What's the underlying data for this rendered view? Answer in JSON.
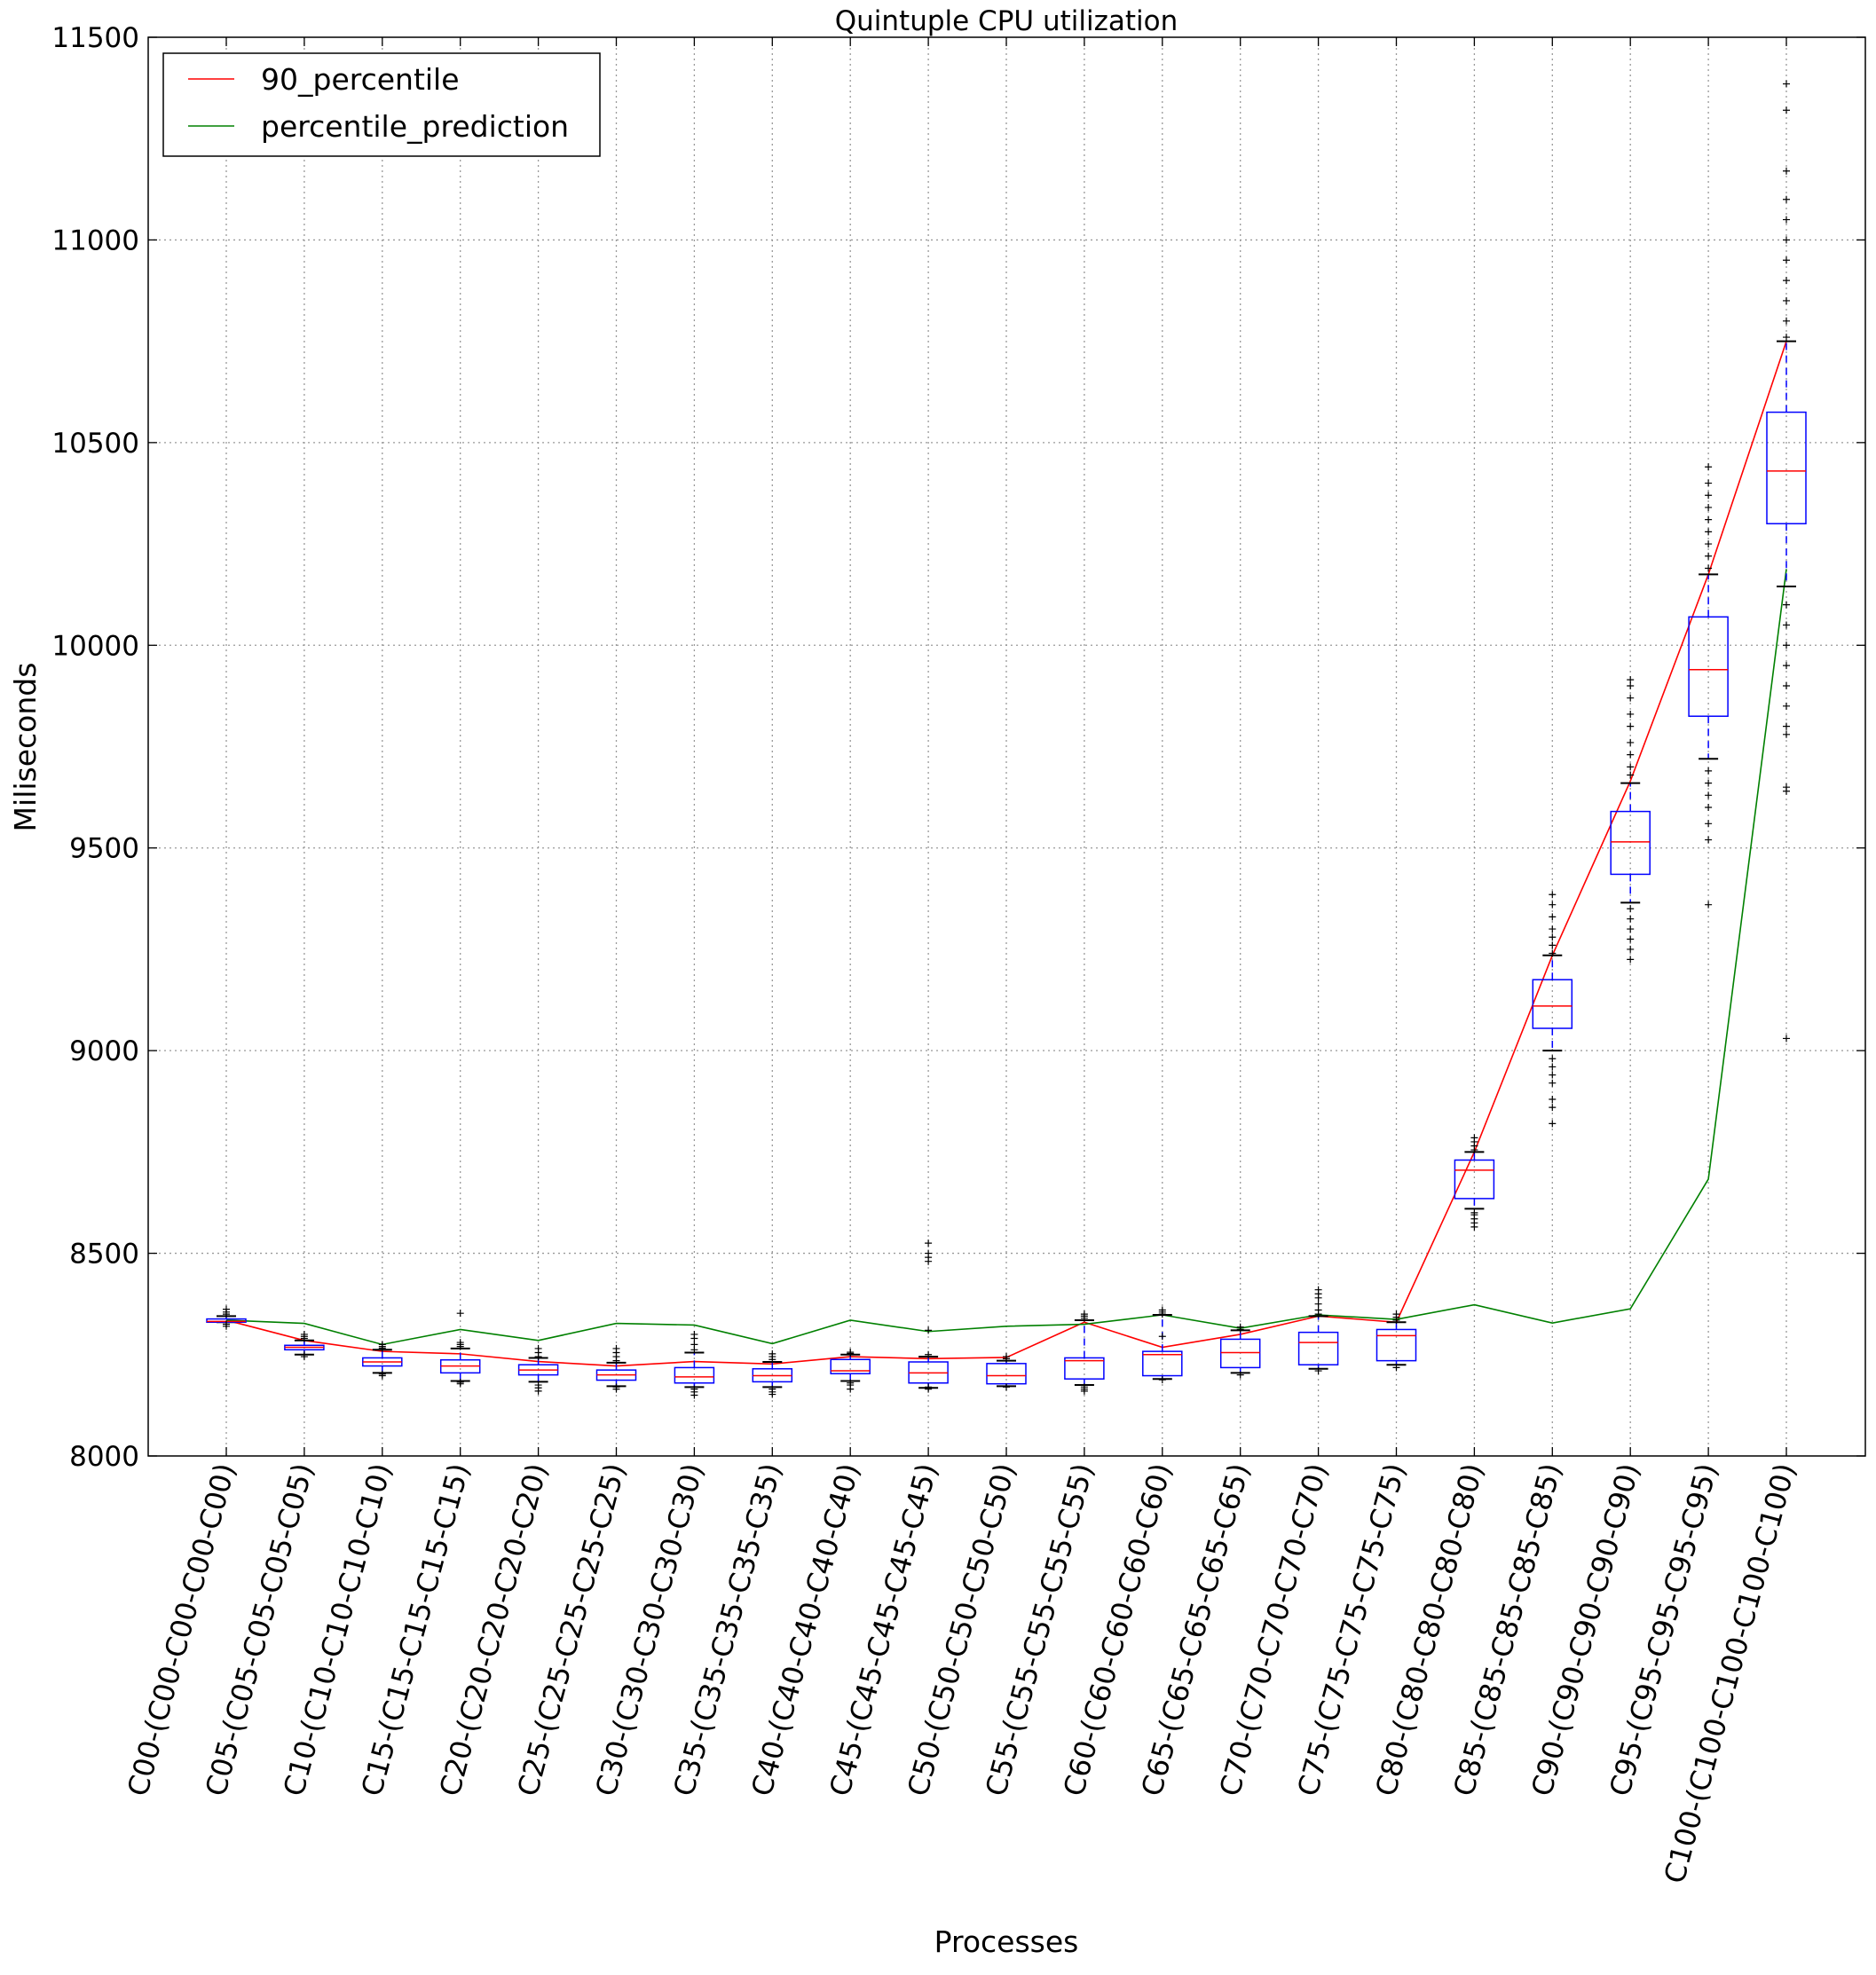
{
  "chart_data": {
    "type": "box",
    "title": "Quintuple CPU utilization",
    "xlabel": "Processes",
    "ylabel": "Miliseconds",
    "ylim": [
      8000,
      11500
    ],
    "yticks": [
      8000,
      8500,
      9000,
      9500,
      10000,
      10500,
      11000,
      11500
    ],
    "grid": true,
    "legend_position": "top-left",
    "categories": [
      "C00-(C00-C00-C00-C00)",
      "C05-(C05-C05-C05-C05)",
      "C10-(C10-C10-C10-C10)",
      "C15-(C15-C15-C15-C15)",
      "C20-(C20-C20-C20-C20)",
      "C25-(C25-C25-C25-C25)",
      "C30-(C30-C30-C30-C30)",
      "C35-(C35-C35-C35-C35)",
      "C40-(C40-C40-C40-C40)",
      "C45-(C45-C45-C45-C45)",
      "C50-(C50-C50-C50-C50)",
      "C55-(C55-C55-C55-C55)",
      "C60-(C60-C60-C60-C60)",
      "C65-(C65-C65-C65-C65)",
      "C70-(C70-C70-C70-C70)",
      "C75-(C75-C75-C75-C75)",
      "C80-(C80-C80-C80-C80)",
      "C85-(C85-C85-C85-C85)",
      "C90-(C90-C90-C90-C90)",
      "C95-(C95-C95-C95-C95)",
      "C100-(C100-C100-C100-C100)"
    ],
    "boxes": [
      {
        "whislo": 8330,
        "q1": 8330,
        "med": 8332,
        "q3": 8338,
        "whishi": 8345,
        "outliers": [
          8320,
          8325,
          8350,
          8355,
          8362
        ]
      },
      {
        "whislo": 8250,
        "q1": 8262,
        "med": 8268,
        "q3": 8273,
        "whishi": 8285,
        "outliers": [
          8245,
          8250,
          8290,
          8295,
          8300
        ]
      },
      {
        "whislo": 8205,
        "q1": 8222,
        "med": 8232,
        "q3": 8242,
        "whishi": 8262,
        "outliers": [
          8198,
          8202,
          8266,
          8270,
          8275
        ]
      },
      {
        "whislo": 8185,
        "q1": 8205,
        "med": 8222,
        "q3": 8237,
        "whishi": 8265,
        "outliers": [
          8178,
          8182,
          8270,
          8275,
          8280,
          8352
        ]
      },
      {
        "whislo": 8183,
        "q1": 8200,
        "med": 8212,
        "q3": 8225,
        "whishi": 8242,
        "outliers": [
          8160,
          8168,
          8175,
          8245,
          8255,
          8265
        ]
      },
      {
        "whislo": 8172,
        "q1": 8187,
        "med": 8200,
        "q3": 8212,
        "whishi": 8230,
        "outliers": [
          8165,
          8170,
          8235,
          8245,
          8255,
          8265
        ]
      },
      {
        "whislo": 8170,
        "q1": 8180,
        "med": 8195,
        "q3": 8218,
        "whishi": 8255,
        "outliers": [
          8150,
          8158,
          8165,
          8262,
          8275,
          8290,
          8300
        ]
      },
      {
        "whislo": 8170,
        "q1": 8183,
        "med": 8198,
        "q3": 8215,
        "whishi": 8232,
        "outliers": [
          8152,
          8158,
          8165,
          8238,
          8245,
          8252
        ]
      },
      {
        "whislo": 8185,
        "q1": 8203,
        "med": 8210,
        "q3": 8238,
        "whishi": 8250,
        "outliers": [
          8165,
          8175,
          8180,
          8253,
          8256
        ]
      },
      {
        "whislo": 8168,
        "q1": 8180,
        "med": 8205,
        "q3": 8232,
        "whishi": 8245,
        "outliers": [
          8165,
          8170,
          8250,
          8310,
          8480,
          8490,
          8500,
          8525
        ]
      },
      {
        "whislo": 8172,
        "q1": 8178,
        "med": 8198,
        "q3": 8228,
        "whishi": 8235,
        "outliers": [
          8170,
          8240,
          8245
        ]
      },
      {
        "whislo": 8175,
        "q1": 8190,
        "med": 8235,
        "q3": 8242,
        "whishi": 8335,
        "outliers": [
          8160,
          8165,
          8170,
          8340,
          8345,
          8350
        ]
      },
      {
        "whislo": 8190,
        "q1": 8198,
        "med": 8250,
        "q3": 8258,
        "whishi": 8348,
        "outliers": [
          8188,
          8295,
          8350,
          8355,
          8360
        ]
      },
      {
        "whislo": 8205,
        "q1": 8218,
        "med": 8255,
        "q3": 8288,
        "whishi": 8310,
        "outliers": [
          8200,
          8312,
          8318
        ]
      },
      {
        "whislo": 8215,
        "q1": 8225,
        "med": 8280,
        "q3": 8305,
        "whishi": 8345,
        "outliers": [
          8210,
          8350,
          8360,
          8375,
          8390,
          8400,
          8410
        ]
      },
      {
        "whislo": 8225,
        "q1": 8235,
        "med": 8297,
        "q3": 8312,
        "whishi": 8330,
        "outliers": [
          8218,
          8335,
          8342,
          8350
        ]
      },
      {
        "whislo": 8610,
        "q1": 8635,
        "med": 8705,
        "q3": 8730,
        "whishi": 8750,
        "outliers": [
          8565,
          8575,
          8585,
          8595,
          8600,
          8755,
          8765,
          8775,
          8785
        ]
      },
      {
        "whislo": 9000,
        "q1": 9055,
        "med": 9110,
        "q3": 9175,
        "whishi": 9235,
        "outliers": [
          8820,
          8860,
          8880,
          8920,
          8940,
          8960,
          8980,
          9240,
          9260,
          9280,
          9300,
          9330,
          9360,
          9385
        ]
      },
      {
        "whislo": 9365,
        "q1": 9435,
        "med": 9515,
        "q3": 9590,
        "whishi": 9660,
        "outliers": [
          9225,
          9250,
          9275,
          9300,
          9325,
          9350,
          9680,
          9700,
          9730,
          9760,
          9800,
          9830,
          9870,
          9900,
          9915
        ]
      },
      {
        "whislo": 9720,
        "q1": 9825,
        "med": 9940,
        "q3": 10070,
        "whishi": 10175,
        "outliers": [
          9360,
          9520,
          9560,
          9600,
          9630,
          9660,
          9690,
          10190,
          10220,
          10250,
          10280,
          10310,
          10340,
          10370,
          10400,
          10440
        ]
      },
      {
        "whislo": 10145,
        "q1": 10300,
        "med": 10430,
        "q3": 10575,
        "whishi": 10750,
        "outliers": [
          9030,
          9640,
          9650,
          9780,
          9800,
          9850,
          9900,
          9950,
          10000,
          10050,
          10100,
          10760,
          10800,
          10850,
          10900,
          10950,
          11000,
          11050,
          11100,
          11170,
          11320,
          11385
        ]
      }
    ],
    "series": [
      {
        "name": "90_percentile",
        "color": "#ff0000",
        "values": [
          8335,
          8285,
          8258,
          8252,
          8233,
          8222,
          8233,
          8227,
          8245,
          8240,
          8243,
          8330,
          8268,
          8300,
          8345,
          8330,
          8750,
          9235,
          9665,
          10175,
          10750
        ]
      },
      {
        "name": "percentile_prediction",
        "color": "#008000",
        "values": [
          8335,
          8327,
          8275,
          8312,
          8285,
          8327,
          8323,
          8277,
          8335,
          8307,
          8320,
          8325,
          8348,
          8315,
          8348,
          8337,
          8373,
          8328,
          8363,
          8683,
          10188
        ]
      }
    ]
  },
  "colors": {
    "box": "#0000ff",
    "median": "#ff0000",
    "outlier": "#000000",
    "grid": "#999999"
  }
}
